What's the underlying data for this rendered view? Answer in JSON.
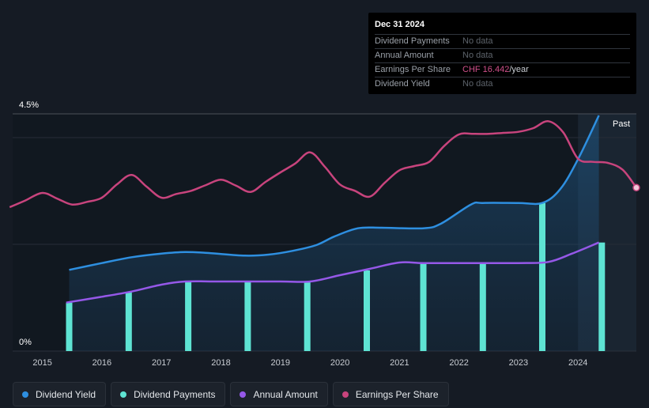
{
  "tooltip": {
    "date": "Dec 31 2024",
    "rows": [
      {
        "label": "Dividend Payments",
        "value": "No data",
        "unit": ""
      },
      {
        "label": "Annual Amount",
        "value": "No data",
        "unit": ""
      },
      {
        "label": "Earnings Per Share",
        "value": "CHF 16.442",
        "unit": "/year"
      },
      {
        "label": "Dividend Yield",
        "value": "No data",
        "unit": ""
      }
    ]
  },
  "past_label": "Past",
  "legend": [
    {
      "label": "Dividend Yield",
      "color": "#2e8fe0"
    },
    {
      "label": "Dividend Payments",
      "color": "#5ee3d3"
    },
    {
      "label": "Annual Amount",
      "color": "#9558e8"
    },
    {
      "label": "Earnings Per Share",
      "color": "#c8447d"
    }
  ],
  "chart_data": {
    "type": "line",
    "title": "",
    "xlabel": "",
    "ylabel": "",
    "x_ticks": [
      "2015",
      "2016",
      "2017",
      "2018",
      "2019",
      "2020",
      "2021",
      "2022",
      "2023",
      "2024"
    ],
    "y_tick_labels": [
      "4.5%",
      "0%"
    ],
    "xlim": [
      2014.5,
      2024.98
    ],
    "ylim": [
      0,
      4.5
    ],
    "series": [
      {
        "name": "Dividend Yield",
        "unit": "%",
        "color": "#2e8fe0",
        "points": [
          [
            2015.45,
            1.54
          ],
          [
            2016.0,
            1.67
          ],
          [
            2016.5,
            1.78
          ],
          [
            2017.0,
            1.85
          ],
          [
            2017.4,
            1.88
          ],
          [
            2017.8,
            1.86
          ],
          [
            2018.4,
            1.81
          ],
          [
            2018.8,
            1.83
          ],
          [
            2019.2,
            1.9
          ],
          [
            2019.6,
            2.01
          ],
          [
            2019.9,
            2.17
          ],
          [
            2020.3,
            2.33
          ],
          [
            2020.7,
            2.34
          ],
          [
            2021.4,
            2.33
          ],
          [
            2021.7,
            2.42
          ],
          [
            2022.2,
            2.78
          ],
          [
            2022.4,
            2.81
          ],
          [
            2023.0,
            2.81
          ],
          [
            2023.4,
            2.81
          ],
          [
            2023.7,
            3.07
          ],
          [
            2024.0,
            3.64
          ],
          [
            2024.35,
            4.47
          ]
        ]
      },
      {
        "name": "Annual Amount",
        "unit": "%",
        "color": "#9558e8",
        "points": [
          [
            2015.4,
            0.92
          ],
          [
            2016.0,
            1.03
          ],
          [
            2016.5,
            1.13
          ],
          [
            2017.0,
            1.26
          ],
          [
            2017.4,
            1.32
          ],
          [
            2018.0,
            1.32
          ],
          [
            2019.0,
            1.32
          ],
          [
            2019.5,
            1.32
          ],
          [
            2020.0,
            1.44
          ],
          [
            2020.5,
            1.56
          ],
          [
            2021.0,
            1.68
          ],
          [
            2021.4,
            1.67
          ],
          [
            2022.0,
            1.67
          ],
          [
            2023.0,
            1.67
          ],
          [
            2023.5,
            1.69
          ],
          [
            2023.9,
            1.85
          ],
          [
            2024.35,
            2.06
          ]
        ]
      },
      {
        "name": "Earnings Per Share",
        "unit": "",
        "color": "#c8447d",
        "points": [
          [
            2014.45,
            2.73
          ],
          [
            2014.7,
            2.85
          ],
          [
            2015.0,
            3.0
          ],
          [
            2015.25,
            2.89
          ],
          [
            2015.5,
            2.78
          ],
          [
            2015.75,
            2.83
          ],
          [
            2016.0,
            2.91
          ],
          [
            2016.25,
            3.16
          ],
          [
            2016.5,
            3.34
          ],
          [
            2016.75,
            3.12
          ],
          [
            2017.0,
            2.91
          ],
          [
            2017.25,
            2.98
          ],
          [
            2017.5,
            3.04
          ],
          [
            2017.75,
            3.15
          ],
          [
            2018.0,
            3.25
          ],
          [
            2018.25,
            3.14
          ],
          [
            2018.5,
            3.02
          ],
          [
            2018.75,
            3.21
          ],
          [
            2019.0,
            3.39
          ],
          [
            2019.25,
            3.56
          ],
          [
            2019.5,
            3.77
          ],
          [
            2019.75,
            3.49
          ],
          [
            2020.0,
            3.16
          ],
          [
            2020.25,
            3.04
          ],
          [
            2020.5,
            2.93
          ],
          [
            2020.75,
            3.19
          ],
          [
            2021.0,
            3.43
          ],
          [
            2021.25,
            3.51
          ],
          [
            2021.5,
            3.59
          ],
          [
            2021.75,
            3.89
          ],
          [
            2022.0,
            4.11
          ],
          [
            2022.25,
            4.12
          ],
          [
            2022.5,
            4.12
          ],
          [
            2022.75,
            4.14
          ],
          [
            2023.0,
            4.16
          ],
          [
            2023.25,
            4.23
          ],
          [
            2023.5,
            4.36
          ],
          [
            2023.75,
            4.15
          ],
          [
            2024.0,
            3.65
          ],
          [
            2024.25,
            3.59
          ],
          [
            2024.5,
            3.57
          ],
          [
            2024.75,
            3.44
          ],
          [
            2024.98,
            3.1
          ]
        ]
      },
      {
        "name": "Dividend Payments",
        "type": "bar",
        "unit": "%",
        "color": "#5ee3d3",
        "points": [
          [
            2015.45,
            0.92
          ],
          [
            2016.45,
            1.12
          ],
          [
            2017.45,
            1.31
          ],
          [
            2018.45,
            1.31
          ],
          [
            2019.45,
            1.31
          ],
          [
            2020.45,
            1.53
          ],
          [
            2021.4,
            1.67
          ],
          [
            2022.4,
            1.67
          ],
          [
            2023.4,
            2.81
          ],
          [
            2024.4,
            2.06
          ]
        ]
      }
    ],
    "forecast_region_start": 2024.0,
    "grid": true,
    "legend_position": "bottom"
  }
}
